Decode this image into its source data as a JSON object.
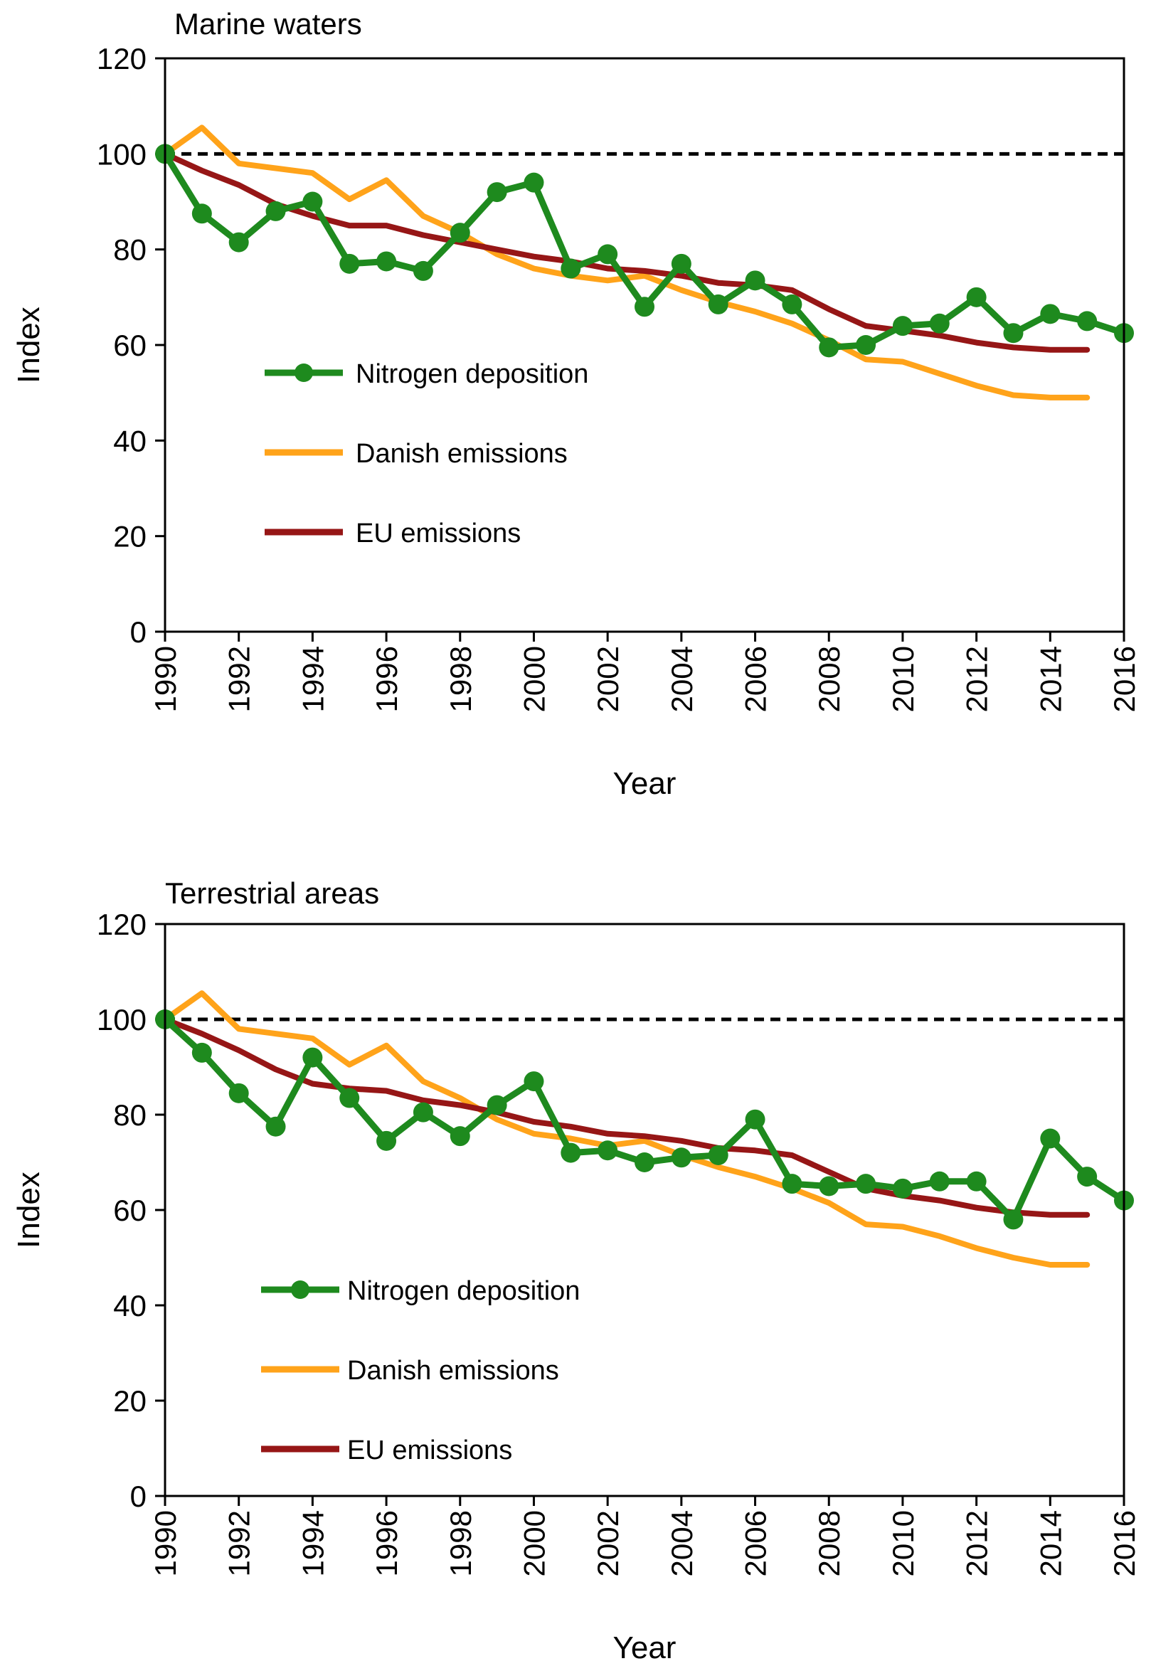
{
  "colors": {
    "nitrogen": "#1e8a1e",
    "danish": "#ffa31a",
    "eu": "#961616",
    "reference": "#000000"
  },
  "chart_data": [
    {
      "type": "line",
      "title": "Marine waters",
      "xlabel": "Year",
      "ylabel": "Index",
      "xlim": [
        1990,
        2016
      ],
      "ylim": [
        0,
        120
      ],
      "yticks": [
        "0",
        "20",
        "40",
        "60",
        "80",
        "100",
        "120"
      ],
      "xticks": [
        "1990",
        "1992",
        "1994",
        "1996",
        "1998",
        "2000",
        "2002",
        "2004",
        "2006",
        "2008",
        "2010",
        "2012",
        "2014",
        "2016"
      ],
      "reference_line": 100,
      "legend": [
        "Nitrogen deposition",
        "Danish emissions",
        "EU emissions"
      ],
      "series": [
        {
          "name": "Nitrogen deposition",
          "x": [
            1990,
            1991,
            1992,
            1993,
            1994,
            1995,
            1996,
            1997,
            1998,
            1999,
            2000,
            2001,
            2002,
            2003,
            2004,
            2005,
            2006,
            2007,
            2008,
            2009,
            2010,
            2011,
            2012,
            2013,
            2014,
            2015,
            2016
          ],
          "values": [
            100,
            87.5,
            81.5,
            88,
            90,
            77,
            77.5,
            75.5,
            83.5,
            92,
            94,
            76,
            79,
            68,
            77,
            68.5,
            73.5,
            68.5,
            59.5,
            60,
            64,
            64.5,
            70,
            62.5,
            66.5,
            65,
            62.5
          ]
        },
        {
          "name": "Danish emissions",
          "x": [
            1990,
            1991,
            1992,
            1993,
            1994,
            1995,
            1996,
            1997,
            1998,
            1999,
            2000,
            2001,
            2002,
            2003,
            2004,
            2005,
            2006,
            2007,
            2008,
            2009,
            2010,
            2011,
            2012,
            2013,
            2014,
            2015
          ],
          "values": [
            100,
            105.5,
            98,
            97,
            96,
            90.5,
            94.5,
            87,
            83.5,
            79,
            76,
            74.5,
            73.5,
            74.5,
            71.5,
            69,
            67,
            64.5,
            61,
            57,
            56.5,
            54,
            51.5,
            49.5,
            49,
            49
          ]
        },
        {
          "name": "EU emissions",
          "x": [
            1990,
            1991,
            1992,
            1993,
            1994,
            1995,
            1996,
            1997,
            1998,
            1999,
            2000,
            2001,
            2002,
            2003,
            2004,
            2005,
            2006,
            2007,
            2008,
            2009,
            2010,
            2011,
            2012,
            2013,
            2014,
            2015
          ],
          "values": [
            100,
            96.5,
            93.5,
            89.5,
            87,
            85,
            85,
            83,
            81.5,
            80,
            78.5,
            77.5,
            76,
            75.5,
            74.5,
            73,
            72.5,
            71.5,
            67.5,
            64,
            63,
            62,
            60.5,
            59.5,
            59,
            59
          ]
        }
      ]
    },
    {
      "type": "line",
      "title": "Terrestrial areas",
      "xlabel": "Year",
      "ylabel": "Index",
      "xlim": [
        1990,
        2016
      ],
      "ylim": [
        0,
        120
      ],
      "yticks": [
        "0",
        "20",
        "40",
        "60",
        "80",
        "100",
        "120"
      ],
      "xticks": [
        "1990",
        "1992",
        "1994",
        "1996",
        "1998",
        "2000",
        "2002",
        "2004",
        "2006",
        "2008",
        "2010",
        "2012",
        "2014",
        "2016"
      ],
      "reference_line": 100,
      "legend": [
        "Nitrogen deposition",
        "Danish emissions",
        "EU emissions"
      ],
      "series": [
        {
          "name": "Nitrogen deposition",
          "x": [
            1990,
            1991,
            1992,
            1993,
            1994,
            1995,
            1996,
            1997,
            1998,
            1999,
            2000,
            2001,
            2002,
            2003,
            2004,
            2005,
            2006,
            2007,
            2008,
            2009,
            2010,
            2011,
            2012,
            2013,
            2014,
            2015,
            2016
          ],
          "values": [
            100,
            93,
            84.5,
            77.5,
            92,
            83.5,
            74.5,
            80.5,
            75.5,
            82,
            87,
            72,
            72.5,
            70,
            71,
            71.5,
            79,
            65.5,
            65,
            65.5,
            64.5,
            66,
            66,
            58,
            75,
            67,
            62
          ]
        },
        {
          "name": "Danish emissions",
          "x": [
            1990,
            1991,
            1992,
            1993,
            1994,
            1995,
            1996,
            1997,
            1998,
            1999,
            2000,
            2001,
            2002,
            2003,
            2004,
            2005,
            2006,
            2007,
            2008,
            2009,
            2010,
            2011,
            2012,
            2013,
            2014,
            2015
          ],
          "values": [
            100,
            105.5,
            98,
            97,
            96,
            90.5,
            94.5,
            87,
            83.5,
            79,
            76,
            75,
            73.5,
            74.5,
            71.5,
            69,
            67,
            64.5,
            61.5,
            57,
            56.5,
            54.5,
            52,
            50,
            48.5,
            48.5
          ]
        },
        {
          "name": "EU emissions",
          "x": [
            1990,
            1991,
            1992,
            1993,
            1994,
            1995,
            1996,
            1997,
            1998,
            1999,
            2000,
            2001,
            2002,
            2003,
            2004,
            2005,
            2006,
            2007,
            2008,
            2009,
            2010,
            2011,
            2012,
            2013,
            2014,
            2015
          ],
          "values": [
            100,
            97,
            93.5,
            89.5,
            86.5,
            85.5,
            85,
            83,
            82,
            80.5,
            78.5,
            77.5,
            76,
            75.5,
            74.5,
            73,
            72.5,
            71.5,
            68,
            64.5,
            63,
            62,
            60.5,
            59.5,
            59,
            59
          ]
        }
      ]
    }
  ]
}
